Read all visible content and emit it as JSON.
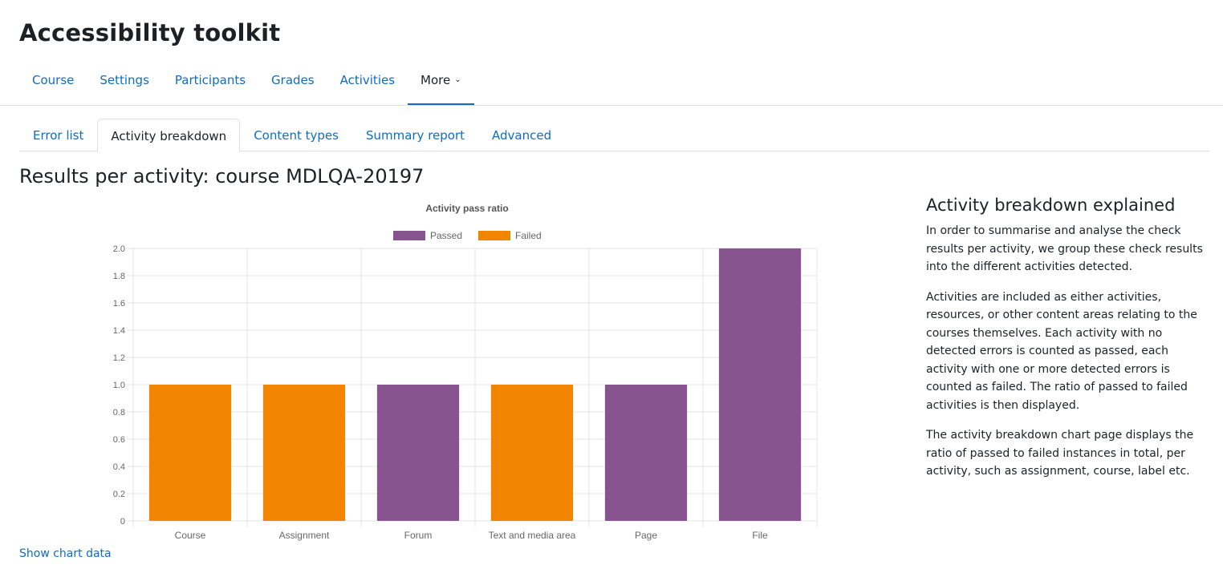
{
  "page": {
    "title": "Accessibility toolkit"
  },
  "primary_nav": {
    "items": [
      {
        "label": "Course"
      },
      {
        "label": "Settings"
      },
      {
        "label": "Participants"
      },
      {
        "label": "Grades"
      },
      {
        "label": "Activities"
      },
      {
        "label": "More"
      }
    ],
    "active_index": 5
  },
  "tabs": {
    "items": [
      {
        "label": "Error list"
      },
      {
        "label": "Activity breakdown"
      },
      {
        "label": "Content types"
      },
      {
        "label": "Summary report"
      },
      {
        "label": "Advanced"
      }
    ],
    "active_index": 1
  },
  "section": {
    "title": "Results per activity: course MDLQA-20197"
  },
  "show_chart_data": "Show chart data",
  "sidebar": {
    "title": "Activity breakdown explained",
    "paragraphs": [
      "In order to summarise and analyse the check results per activity, we group these check results into the different activities detected.",
      "Activities are included as either activities, resources, or other content areas relating to the courses themselves. Each activity with no detected errors is counted as passed, each activity with one or more detected errors is counted as failed. The ratio of passed to failed activities is then displayed.",
      "The activity breakdown chart page displays the ratio of passed to failed instances in total, per activity, such as assignment, course, label etc."
    ]
  },
  "colors": {
    "accent": "#0f6cbf",
    "passed": "#88548f",
    "failed": "#f28500"
  },
  "chart_data": {
    "type": "bar",
    "stacked": true,
    "title": "Activity pass ratio",
    "categories": [
      "Course",
      "Assignment",
      "Forum",
      "Text and media area",
      "Page",
      "File"
    ],
    "series": [
      {
        "name": "Passed",
        "color": "#88548f",
        "values": [
          0,
          0,
          1,
          0,
          1,
          2
        ]
      },
      {
        "name": "Failed",
        "color": "#f28500",
        "values": [
          1,
          1,
          0,
          1,
          0,
          0
        ]
      }
    ],
    "ylim": [
      0,
      2.0
    ],
    "yticks": [
      "0",
      "0.2",
      "0.4",
      "0.6",
      "0.8",
      "1.0",
      "1.2",
      "1.4",
      "1.6",
      "1.8",
      "2.0"
    ],
    "grid": true,
    "legend": "top"
  }
}
